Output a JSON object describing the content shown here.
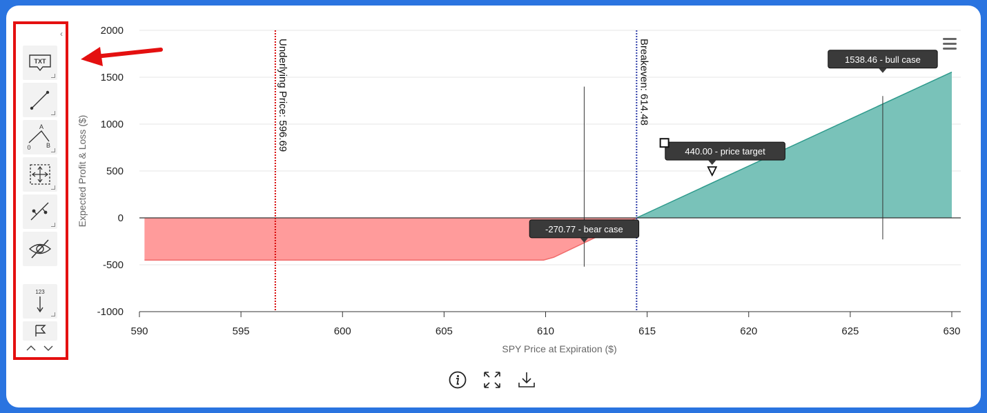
{
  "toolbar": {
    "collapse_glyph": "‹",
    "tools": [
      {
        "name": "text-annotation-tool",
        "icon": "txt-callout-icon",
        "label": "TXT"
      },
      {
        "name": "segment-tool",
        "icon": "line-segment-icon"
      },
      {
        "name": "measure-angle-tool",
        "icon": "angle-measure-icon",
        "labels": [
          "A",
          "0",
          "B"
        ]
      },
      {
        "name": "zoom-select-tool",
        "icon": "dashed-select-icon"
      },
      {
        "name": "parallel-line-tool",
        "icon": "line-with-points-icon"
      },
      {
        "name": "toggle-annotations-tool",
        "icon": "eye-slash-icon"
      },
      {
        "name": "vertical-counter-tool",
        "icon": "counter-arrow-icon",
        "label": "123"
      },
      {
        "name": "flag-tool",
        "icon": "flag-icon"
      }
    ],
    "nav": [
      "chevron-up-icon",
      "chevron-down-icon"
    ]
  },
  "colors": {
    "loss_fill": "#ff9b9b",
    "loss_line": "#f06b6b",
    "profit_fill": "#79c2b9",
    "profit_line": "#2e9a8c",
    "underlying_line": "#d60000",
    "breakeven_line": "#2b3aa8",
    "label_bg": "#3a3a3a",
    "frame_red": "#e41010",
    "page_blue": "#2a74e0"
  },
  "chart_data": {
    "type": "area",
    "xlabel": "SPY Price at Expiration ($)",
    "ylabel": "Expected Profit & Loss ($)",
    "xlim": [
      590,
      630
    ],
    "ylim": [
      -1000,
      2000
    ],
    "xticks": [
      590,
      595,
      600,
      605,
      610,
      615,
      620,
      625,
      630
    ],
    "yticks": [
      -1000,
      -500,
      0,
      500,
      1000,
      1500,
      2000
    ],
    "grid": true,
    "series": [
      {
        "x": [
          590.25,
          609.9,
          610.4,
          614.48,
          630
        ],
        "y": [
          -450,
          -450,
          -420,
          0,
          1555
        ]
      }
    ],
    "vertical_lines": [
      {
        "x": 596.69,
        "label": "Underlying Price: 596.69",
        "style": "dotted",
        "color": "#d60000"
      },
      {
        "x": 614.48,
        "label": "Breakeven: 614.48",
        "style": "dotted",
        "color": "#2b3aa8"
      }
    ],
    "annotations": [
      {
        "x": 611.9,
        "y": -270.77,
        "label": "-270.77 - bear case",
        "marker": "pin",
        "crossline": [
          -520,
          1400
        ]
      },
      {
        "x": 618.2,
        "y": 440.0,
        "label": "440.00 - price target",
        "marker": "triangle"
      },
      {
        "x": 626.6,
        "y": 1538.46,
        "label": "1538.46 - bull case",
        "marker": "pin",
        "crossline": [
          -230,
          1300
        ]
      }
    ],
    "handle": {
      "x": 615.85,
      "y": 800
    }
  },
  "footer": {
    "icons": [
      "info-icon",
      "fullscreen-icon",
      "download-icon"
    ]
  }
}
